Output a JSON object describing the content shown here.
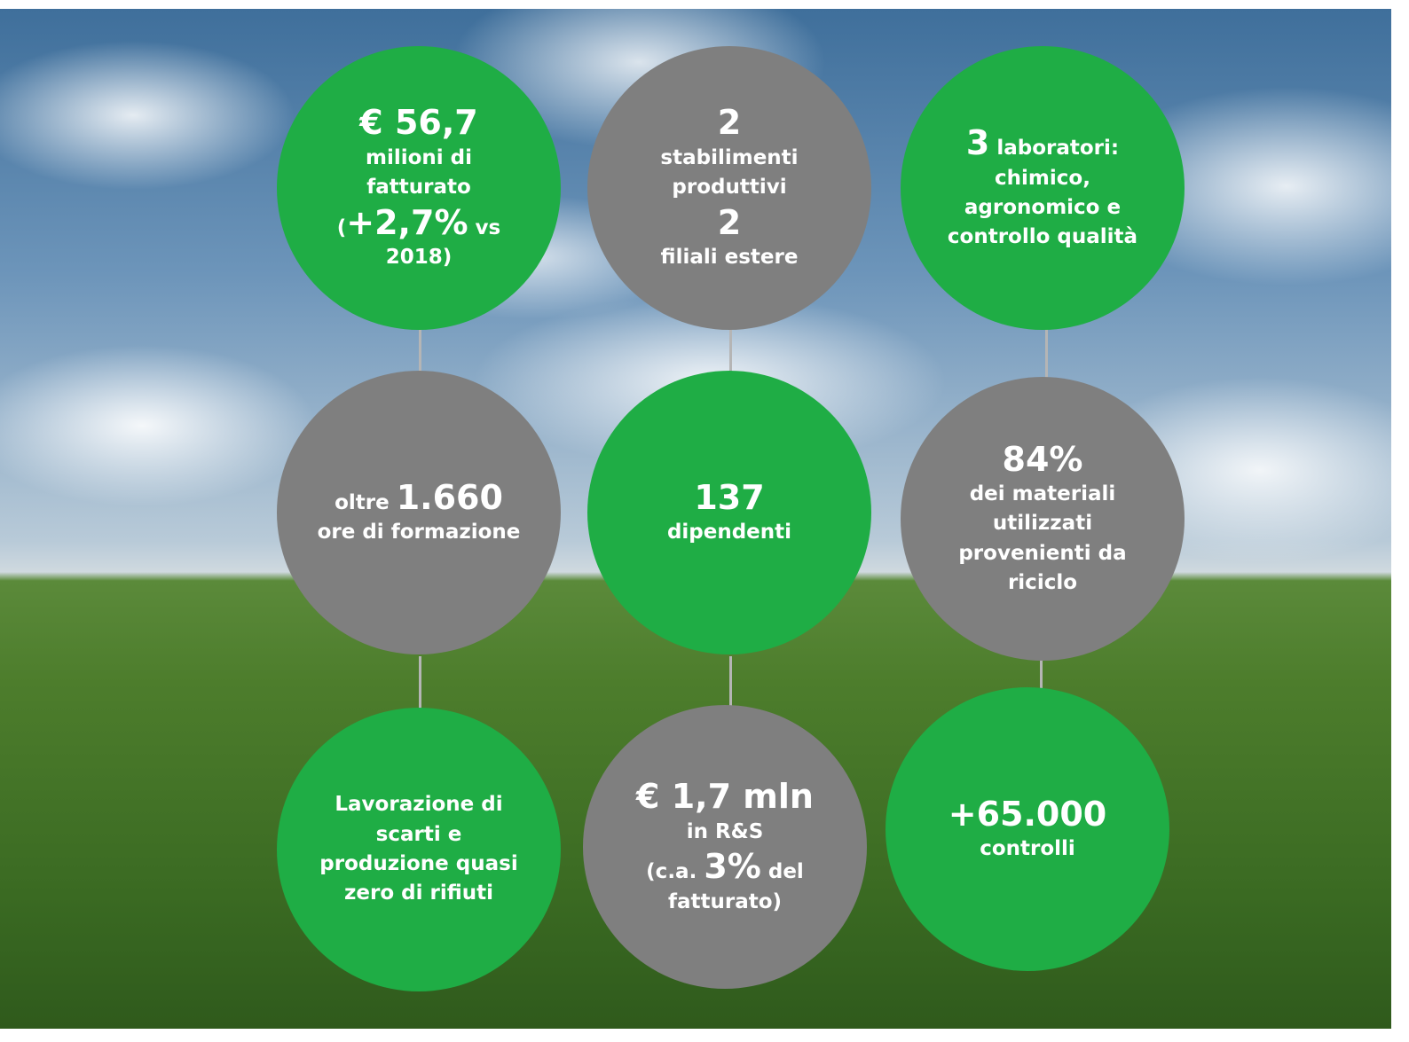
{
  "circles": [
    {
      "color": "#1fad45",
      "lines": [
        [
          {
            "big": "€ 56,7"
          }
        ],
        [
          {
            "small": "milioni di"
          }
        ],
        [
          {
            "small": "fatturato"
          }
        ],
        [
          {
            "small": "("
          },
          {
            "big": "+2,7%"
          },
          {
            "small": " vs"
          }
        ],
        [
          {
            "small": "2018)"
          }
        ]
      ]
    },
    {
      "color": "#7f7f7f",
      "lines": [
        [
          {
            "big": "2"
          }
        ],
        [
          {
            "small": "stabilimenti"
          }
        ],
        [
          {
            "small": "produttivi"
          }
        ],
        [
          {
            "big": "2"
          }
        ],
        [
          {
            "small": "filiali estere"
          }
        ]
      ]
    },
    {
      "color": "#1fad45",
      "lines": [
        [
          {
            "big": "3"
          },
          {
            "small": " laboratori:"
          }
        ],
        [
          {
            "small": "chimico,"
          }
        ],
        [
          {
            "small": "agronomico e"
          }
        ],
        [
          {
            "small": "controllo qualità"
          }
        ]
      ]
    },
    {
      "color": "#7f7f7f",
      "lines": [
        [
          {
            "small": "oltre "
          },
          {
            "big": "1.660"
          }
        ],
        [
          {
            "small": "ore di formazione"
          }
        ]
      ]
    },
    {
      "color": "#1fad45",
      "lines": [
        [
          {
            "big": "137"
          }
        ],
        [
          {
            "small": "dipendenti"
          }
        ]
      ]
    },
    {
      "color": "#7f7f7f",
      "lines": [
        [
          {
            "big": "84%"
          }
        ],
        [
          {
            "small": "dei materiali"
          }
        ],
        [
          {
            "small": "utilizzati"
          }
        ],
        [
          {
            "small": "provenienti da"
          }
        ],
        [
          {
            "small": "riciclo"
          }
        ]
      ]
    },
    {
      "color": "#1fad45",
      "lines": [
        [
          {
            "small": "Lavorazione di"
          }
        ],
        [
          {
            "small": "scarti e"
          }
        ],
        [
          {
            "small": "produzione quasi"
          }
        ],
        [
          {
            "small": "zero di rifiuti"
          }
        ]
      ]
    },
    {
      "color": "#7f7f7f",
      "lines": [
        [
          {
            "big": "€ 1,7 mln"
          }
        ],
        [
          {
            "small": "in R&S"
          }
        ],
        [
          {
            "small": "(c.a. "
          },
          {
            "big": "3%"
          },
          {
            "small": " del"
          }
        ],
        [
          {
            "small": "fatturato)"
          }
        ]
      ]
    },
    {
      "color": "#1fad45",
      "lines": [
        [
          {
            "big": "+65.000"
          }
        ],
        [
          {
            "small": "controlli"
          }
        ]
      ]
    }
  ]
}
